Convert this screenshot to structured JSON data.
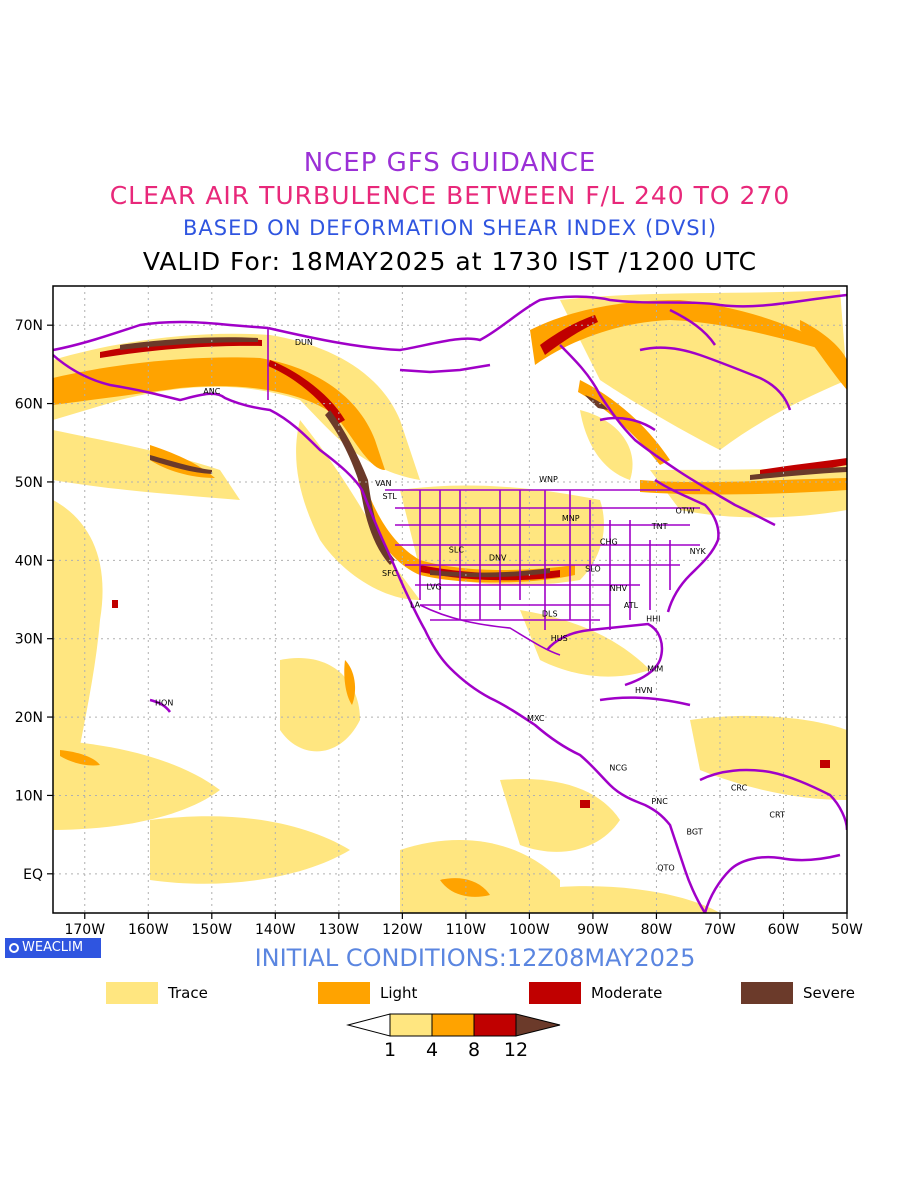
{
  "titles": {
    "line1": "NCEP GFS GUIDANCE",
    "line2": "CLEAR AIR TURBULENCE BETWEEN F/L 240 TO 270",
    "line3": "BASED ON DEFORMATION SHEAR INDEX (DVSI)",
    "line4": "VALID For: 18MAY2025 at 1730 IST /1200 UTC"
  },
  "map": {
    "lat_labels": [
      "70N",
      "60N",
      "50N",
      "40N",
      "30N",
      "20N",
      "10N",
      "EQ"
    ],
    "lat_values": [
      70,
      60,
      50,
      40,
      30,
      20,
      10,
      0
    ],
    "lon_labels": [
      "170W",
      "160W",
      "150W",
      "140W",
      "130W",
      "120W",
      "110W",
      "100W",
      "90W",
      "80W",
      "70W",
      "60W",
      "50W"
    ],
    "lon_values": [
      -170,
      -160,
      -150,
      -140,
      -130,
      -120,
      -110,
      -100,
      -90,
      -80,
      -70,
      -60,
      -50
    ],
    "lon_range": [
      -175,
      -50
    ],
    "lat_range": [
      -5,
      75
    ],
    "colors": {
      "trace": "#ffe680",
      "light": "#ffa300",
      "moderate": "#c00000",
      "severe": "#6b3a2a",
      "coast": "#a000c8",
      "grid": "#b0b0b0"
    },
    "stations": [
      {
        "code": "DUN",
        "lon": -135.5,
        "lat": 67.5
      },
      {
        "code": "ANC",
        "lon": -150.0,
        "lat": 61.2
      },
      {
        "code": "VAN",
        "lon": -123.0,
        "lat": 49.5
      },
      {
        "code": "STL",
        "lon": -122.0,
        "lat": 47.8
      },
      {
        "code": "WNP",
        "lon": -97.0,
        "lat": 50.0
      },
      {
        "code": "MNP",
        "lon": -93.5,
        "lat": 45.0
      },
      {
        "code": "OTW",
        "lon": -75.5,
        "lat": 46.0
      },
      {
        "code": "TNT",
        "lon": -79.5,
        "lat": 44.0
      },
      {
        "code": "CHG",
        "lon": -87.5,
        "lat": 42.0
      },
      {
        "code": "NYK",
        "lon": -73.5,
        "lat": 40.8
      },
      {
        "code": "DNV",
        "lon": -105.0,
        "lat": 40.0
      },
      {
        "code": "SLC",
        "lon": -111.5,
        "lat": 41.0
      },
      {
        "code": "SFC",
        "lon": -122.0,
        "lat": 38.0
      },
      {
        "code": "LVG",
        "lon": -115.0,
        "lat": 36.3
      },
      {
        "code": "SLO",
        "lon": -90.0,
        "lat": 38.6
      },
      {
        "code": "NHV",
        "lon": -86.0,
        "lat": 36.1
      },
      {
        "code": "ATL",
        "lon": -84.0,
        "lat": 33.9
      },
      {
        "code": "LA",
        "lon": -118.0,
        "lat": 34.0
      },
      {
        "code": "DLS",
        "lon": -96.8,
        "lat": 32.8
      },
      {
        "code": "HHI",
        "lon": -80.5,
        "lat": 32.2
      },
      {
        "code": "HUS",
        "lon": -95.3,
        "lat": 29.7
      },
      {
        "code": "MIM",
        "lon": -80.2,
        "lat": 25.8
      },
      {
        "code": "HVN",
        "lon": -82.0,
        "lat": 23.1
      },
      {
        "code": "HON",
        "lon": -157.5,
        "lat": 21.5
      },
      {
        "code": "MXC",
        "lon": -99.0,
        "lat": 19.5
      },
      {
        "code": "NCG",
        "lon": -86.0,
        "lat": 13.2
      },
      {
        "code": "CRC",
        "lon": -67.0,
        "lat": 10.6
      },
      {
        "code": "PNC",
        "lon": -79.5,
        "lat": 8.9
      },
      {
        "code": "CRT",
        "lon": -61.0,
        "lat": 7.2
      },
      {
        "code": "BGT",
        "lon": -74.0,
        "lat": 5.0
      },
      {
        "code": "QTO",
        "lon": -78.5,
        "lat": 0.4
      }
    ]
  },
  "logo": "WEACLIM",
  "initial_conditions": "INITIAL CONDITIONS:12Z08MAY2025",
  "legend": [
    {
      "label": "Trace",
      "color": "#ffe680"
    },
    {
      "label": "Light",
      "color": "#ffa300"
    },
    {
      "label": "Moderate",
      "color": "#c00000"
    },
    {
      "label": "Severe",
      "color": "#6b3a2a"
    }
  ],
  "colorbar": {
    "ticks": [
      "1",
      "4",
      "8",
      "12"
    ],
    "colors": [
      "#ffffff",
      "#ffe680",
      "#ffa300",
      "#c00000",
      "#6b3a2a"
    ]
  }
}
